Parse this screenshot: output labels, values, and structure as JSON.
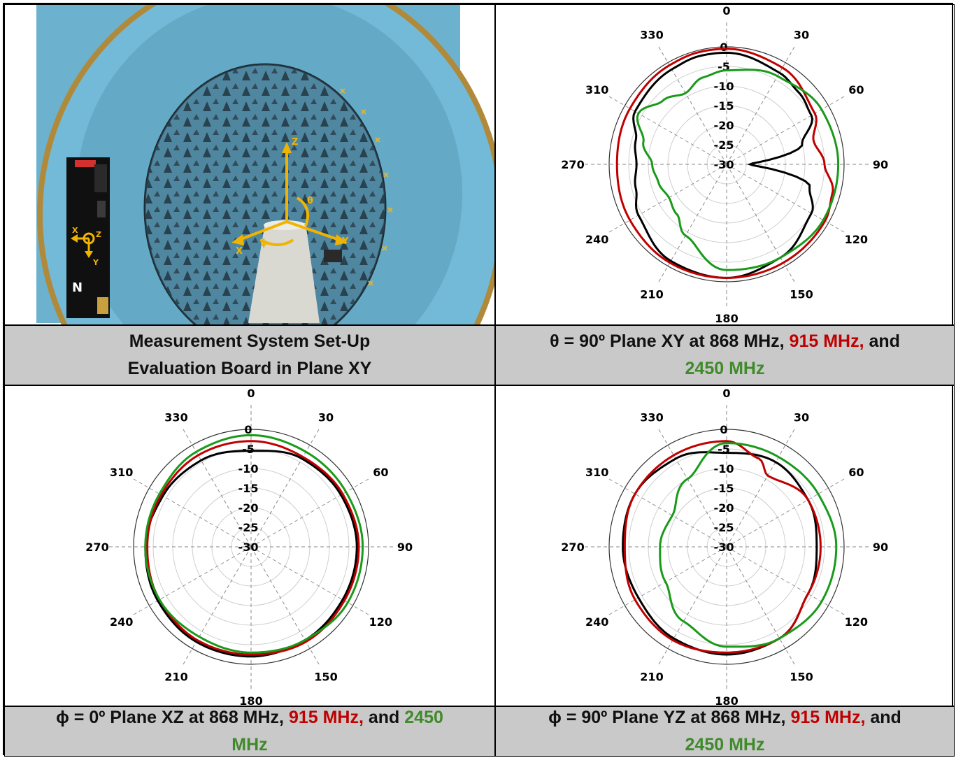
{
  "captions": {
    "c1": {
      "line1": "Measurement System Set-Up",
      "line2": "Evaluation Board in Plane XY"
    },
    "c2": {
      "pre": "θ = 90º Plane XY at 868 MHz, ",
      "red": "915 MHz,",
      "mid": " and",
      "green": "2450 MHz"
    },
    "c3": {
      "pre": "ϕ = 0º Plane XZ at 868 MHz, ",
      "red": "915 MHz,",
      "mid": " and ",
      "green": "2450",
      "green2": "MHz"
    },
    "c4": {
      "pre": "ϕ = 90º Plane YZ at 868 MHz, ",
      "red": "915 MHz,",
      "mid": " and",
      "green": "2450 MHz"
    }
  },
  "photo": {
    "axes": {
      "z": "Z",
      "x": "X",
      "y": "Y",
      "theta": "θ",
      "phi": "ϕ"
    },
    "board_axes": {
      "x": "X",
      "y": "Y",
      "z": "Z"
    }
  },
  "colors": {
    "f868": "#000000",
    "f915": "#c00000",
    "f2450": "#1a9a1a",
    "caption_bg": "#c9c9c9",
    "chamber": "#5ba8c8",
    "axis_arrow": "#f0b400"
  },
  "chart_data": [
    {
      "type": "polar-line",
      "angle_labels": [
        "0",
        "30",
        "60",
        "90",
        "120",
        "150",
        "180",
        "210",
        "240",
        "270",
        "310",
        "330"
      ],
      "radial_labels": [
        "0",
        "-5",
        "-10",
        "-15",
        "-20",
        "-25",
        "-30"
      ],
      "rlim": [
        -30,
        0
      ],
      "series": [
        {
          "name": "868 MHz",
          "angles": [
            0,
            30,
            45,
            60,
            75,
            90,
            105,
            120,
            150,
            180,
            210,
            240,
            255,
            270,
            285,
            300,
            330,
            345
          ],
          "values": [
            -1.5,
            -3,
            -4,
            -5,
            -10,
            -24,
            -8,
            -5,
            -2.5,
            -1,
            -1.5,
            -4,
            -6,
            -7,
            -6,
            -3,
            -2,
            -1.5
          ]
        },
        {
          "name": "915 MHz",
          "angles": [
            0,
            30,
            60,
            75,
            90,
            105,
            120,
            150,
            180,
            210,
            240,
            270,
            300,
            330,
            345
          ],
          "values": [
            -0.5,
            -1.5,
            -4,
            -7,
            -5,
            -2,
            -1,
            -1,
            -1,
            -1,
            -1.5,
            -2,
            -1.5,
            -0.8,
            -0.5
          ]
        },
        {
          "name": "2450 MHz",
          "angles": [
            0,
            30,
            60,
            90,
            120,
            150,
            180,
            210,
            225,
            240,
            255,
            270,
            285,
            300,
            315,
            330,
            345
          ],
          "values": [
            -6,
            -4,
            -2,
            -1.5,
            -1.5,
            -2.5,
            -3,
            -9,
            -12,
            -13,
            -12,
            -11,
            -8,
            -4,
            -7,
            -9,
            -7
          ]
        }
      ]
    },
    {
      "type": "polar-line",
      "angle_labels": [
        "0",
        "30",
        "60",
        "90",
        "120",
        "150",
        "180",
        "210",
        "240",
        "270",
        "310",
        "330"
      ],
      "radial_labels": [
        "0",
        "-5",
        "-10",
        "-15",
        "-20",
        "-25",
        "-30"
      ],
      "rlim": [
        -30,
        0
      ],
      "series": [
        {
          "name": "868 MHz",
          "angles": [
            0,
            30,
            60,
            90,
            120,
            150,
            180,
            210,
            240,
            270,
            300,
            330
          ],
          "values": [
            -5.5,
            -4,
            -3.5,
            -3,
            -3,
            -2.5,
            -2,
            -2,
            -2.5,
            -3,
            -4,
            -4.5
          ]
        },
        {
          "name": "915 MHz",
          "angles": [
            0,
            30,
            60,
            90,
            120,
            150,
            180,
            210,
            240,
            270,
            300,
            330
          ],
          "values": [
            -3,
            -3.5,
            -3,
            -2.5,
            -2.5,
            -2,
            -2.5,
            -2.5,
            -3,
            -3.5,
            -3.5,
            -3
          ]
        },
        {
          "name": "2450 MHz",
          "angles": [
            0,
            30,
            60,
            90,
            120,
            150,
            180,
            210,
            240,
            270,
            300,
            330
          ],
          "values": [
            -1.5,
            -2,
            -2,
            -1.5,
            -1.5,
            -2.5,
            -3,
            -3.5,
            -3,
            -3,
            -3,
            -2
          ]
        }
      ]
    },
    {
      "type": "polar-line",
      "angle_labels": [
        "0",
        "30",
        "60",
        "90",
        "120",
        "150",
        "180",
        "210",
        "240",
        "270",
        "310",
        "330"
      ],
      "radial_labels": [
        "0",
        "-5",
        "-10",
        "-15",
        "-20",
        "-25",
        "-30"
      ],
      "rlim": [
        -30,
        0
      ],
      "series": [
        {
          "name": "868 MHz",
          "angles": [
            0,
            30,
            60,
            90,
            120,
            150,
            180,
            210,
            240,
            270,
            300,
            330
          ],
          "values": [
            -6,
            -5,
            -6,
            -7,
            -6,
            -3,
            -2.5,
            -3,
            -4,
            -3.5,
            -3,
            -4
          ]
        },
        {
          "name": "915 MHz",
          "angles": [
            0,
            20,
            30,
            60,
            90,
            120,
            150,
            180,
            210,
            240,
            270,
            300,
            330
          ],
          "values": [
            -3,
            -6,
            -9,
            -6,
            -6,
            -6,
            -3,
            -3,
            -2.5,
            -3,
            -4,
            -3,
            -3
          ]
        },
        {
          "name": "2450 MHz",
          "angles": [
            0,
            30,
            60,
            90,
            120,
            150,
            180,
            210,
            240,
            270,
            300,
            330
          ],
          "values": [
            -3.5,
            -3.5,
            -3,
            -2,
            -2,
            -3,
            -4.5,
            -8,
            -12,
            -13,
            -14,
            -10
          ]
        }
      ]
    }
  ]
}
